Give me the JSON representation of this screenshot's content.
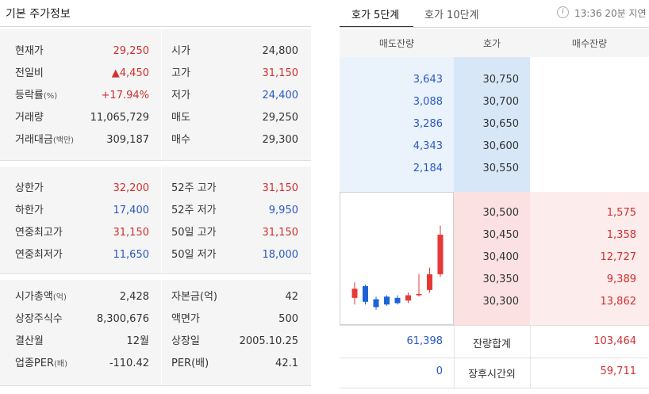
{
  "left": {
    "title": "기본 주가정보",
    "group1": [
      {
        "label": "현재가",
        "suffix": "",
        "value": "29,250",
        "value_color": "red",
        "label2": "시가",
        "value2": "24,800",
        "value2_color": "dark"
      },
      {
        "label": "전일비",
        "suffix": "",
        "value": "▲4,450",
        "value_color": "red",
        "label2": "고가",
        "value2": "31,150",
        "value2_color": "red"
      },
      {
        "label": "등락률",
        "suffix": "(%)",
        "value": "+17.94%",
        "value_color": "red",
        "label2": "저가",
        "value2": "24,400",
        "value2_color": "blue"
      },
      {
        "label": "거래량",
        "suffix": "",
        "value": "11,065,729",
        "value_color": "dark",
        "label2": "매도",
        "value2": "29,250",
        "value2_color": "dark"
      },
      {
        "label": "거래대금",
        "suffix": "(백만)",
        "value": "309,187",
        "value_color": "dark",
        "label2": "매수",
        "value2": "29,300",
        "value2_color": "dark"
      }
    ],
    "group2": [
      {
        "label": "상한가",
        "suffix": "",
        "value": "32,200",
        "value_color": "red",
        "label2": "52주 고가",
        "value2": "31,150",
        "value2_color": "red"
      },
      {
        "label": "하한가",
        "suffix": "",
        "value": "17,400",
        "value_color": "blue",
        "label2": "52주 저가",
        "value2": "9,950",
        "value2_color": "blue"
      },
      {
        "label": "연중최고가",
        "suffix": "",
        "value": "31,150",
        "value_color": "red",
        "label2": "50일 고가",
        "value2": "31,150",
        "value2_color": "red"
      },
      {
        "label": "연중최저가",
        "suffix": "",
        "value": "11,650",
        "value_color": "blue",
        "label2": "50일 저가",
        "value2": "18,000",
        "value2_color": "blue"
      }
    ],
    "group3": [
      {
        "label": "시가총액",
        "suffix": "(억)",
        "value": "2,428",
        "value_color": "dark",
        "label2": "자본금",
        "label2_suffix": "(억)",
        "value2": "42",
        "value2_color": "dark"
      },
      {
        "label": "상장주식수",
        "suffix": "",
        "value": "8,300,676",
        "value_color": "dark",
        "label2": "액면가",
        "label2_suffix": "",
        "value2": "500",
        "value2_color": "dark"
      },
      {
        "label": "결산월",
        "suffix": "",
        "value": "12월",
        "value_color": "dark",
        "label2": "상장일",
        "label2_suffix": "",
        "value2": "2005.10.25",
        "value2_color": "dark"
      },
      {
        "label": "업종PER",
        "suffix": "(배)",
        "value": "-110.42",
        "value_color": "dark",
        "label2": "PER",
        "label2_suffix": "(배)",
        "value2": "42.1",
        "value2_color": "dark"
      }
    ]
  },
  "right": {
    "tab_active": "호가 5단계",
    "tab_inactive": "호가 10단계",
    "info_icon_glyph": "i",
    "delay_text": "13:36 20분 지연",
    "headers": {
      "ask": "매도잔량",
      "price": "호가",
      "bid": "매수잔량"
    },
    "asks": [
      {
        "qty": "3,643",
        "price": "30,750"
      },
      {
        "qty": "3,088",
        "price": "30,700"
      },
      {
        "qty": "3,286",
        "price": "30,650"
      },
      {
        "qty": "4,343",
        "price": "30,600"
      },
      {
        "qty": "2,184",
        "price": "30,550"
      }
    ],
    "bids": [
      {
        "price": "30,500",
        "qty": "1,575"
      },
      {
        "price": "30,450",
        "qty": "1,358"
      },
      {
        "price": "30,400",
        "qty": "12,727"
      },
      {
        "price": "30,350",
        "qty": "9,389"
      },
      {
        "price": "30,300",
        "qty": "13,862"
      }
    ],
    "summary": [
      {
        "left": "61,398",
        "mid": "잔량합계",
        "right": "103,464"
      },
      {
        "left": "0",
        "mid": "장후시간외",
        "right": "59,711"
      }
    ],
    "mini_candles": [
      {
        "color": "red",
        "open": 0.8,
        "close": 0.73,
        "high": 0.68,
        "low": 0.85
      },
      {
        "color": "blue",
        "open": 0.71,
        "close": 0.83,
        "high": 0.7,
        "low": 0.85
      },
      {
        "color": "blue",
        "open": 0.81,
        "close": 0.87,
        "high": 0.79,
        "low": 0.89
      },
      {
        "color": "blue",
        "open": 0.79,
        "close": 0.85,
        "high": 0.78,
        "low": 0.86
      },
      {
        "color": "blue",
        "open": 0.8,
        "close": 0.84,
        "high": 0.78,
        "low": 0.85
      },
      {
        "color": "red",
        "open": 0.82,
        "close": 0.78,
        "high": 0.76,
        "low": 0.84
      },
      {
        "color": "red",
        "open": 0.78,
        "close": 0.77,
        "high": 0.62,
        "low": 0.79
      },
      {
        "color": "red",
        "open": 0.74,
        "close": 0.62,
        "high": 0.57,
        "low": 0.76
      },
      {
        "color": "red",
        "open": 0.62,
        "close": 0.32,
        "high": 0.25,
        "low": 0.64
      }
    ],
    "colors": {
      "up": "#e53935",
      "down": "#1e63d6"
    }
  }
}
